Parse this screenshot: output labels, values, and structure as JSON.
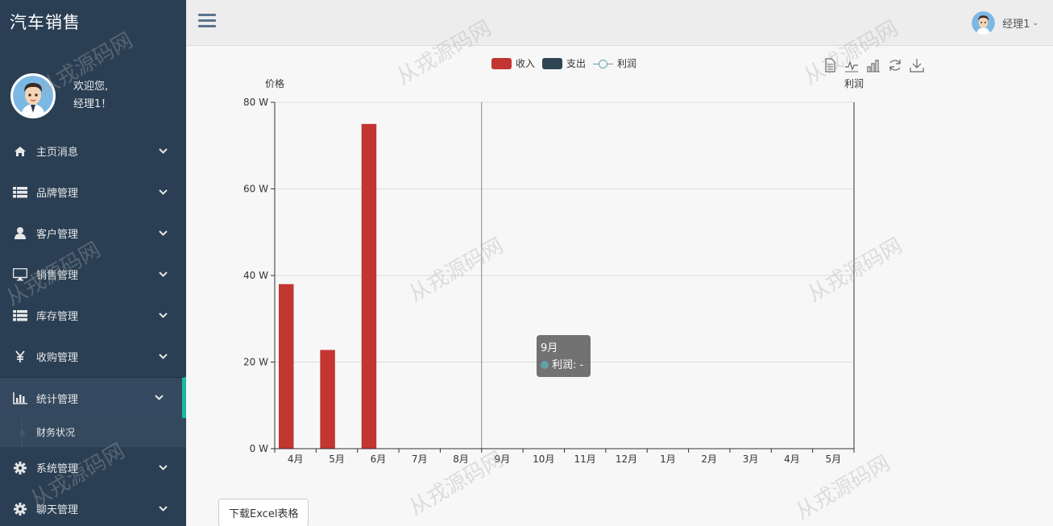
{
  "brand": {
    "title": "汽车销售"
  },
  "profile": {
    "greeting": "欢迎您,",
    "name": "经理1！"
  },
  "sidebar": {
    "items": [
      {
        "label": "主页消息",
        "icon": "home-icon"
      },
      {
        "label": "品牌管理",
        "icon": "list-icon"
      },
      {
        "label": "客户管理",
        "icon": "user-icon"
      },
      {
        "label": "销售管理",
        "icon": "desktop-icon"
      },
      {
        "label": "库存管理",
        "icon": "list-icon"
      },
      {
        "label": "收购管理",
        "icon": "yen-icon"
      },
      {
        "label": "统计管理",
        "icon": "bar-chart-icon"
      },
      {
        "label": "系统管理",
        "icon": "gear-icon"
      },
      {
        "label": "聊天管理",
        "icon": "gear-icon"
      }
    ],
    "active_index": 6,
    "submenu": {
      "label": "财务状况"
    },
    "chevron": "⌄"
  },
  "topbar": {
    "user_name": "经理1",
    "caret": "⌄"
  },
  "watermark": "从戎源码网",
  "chart_data": {
    "type": "bar",
    "title": "",
    "categories": [
      "4月",
      "5月",
      "6月",
      "7月",
      "8月",
      "9月",
      "10月",
      "11月",
      "12月",
      "1月",
      "2月",
      "3月",
      "4月",
      "5月"
    ],
    "series": [
      {
        "name": "收入",
        "type": "bar",
        "color": "#c23531",
        "values": [
          38,
          22.8,
          75,
          null,
          null,
          null,
          null,
          null,
          null,
          null,
          null,
          null,
          null,
          null
        ]
      },
      {
        "name": "支出",
        "type": "bar",
        "color": "#2f4554",
        "values": [
          null,
          null,
          null,
          null,
          null,
          null,
          null,
          null,
          null,
          null,
          null,
          null,
          null,
          null
        ]
      },
      {
        "name": "利润",
        "type": "line",
        "color": "#61a0a8",
        "values": [
          null,
          null,
          null,
          null,
          null,
          null,
          null,
          null,
          null,
          null,
          null,
          null,
          null,
          null
        ]
      }
    ],
    "ylabel": "价格",
    "y2label": "利润",
    "ylim": [
      0,
      80
    ],
    "yticks": [
      0,
      20,
      40,
      60,
      80
    ],
    "ytick_suffix": " W",
    "legend_position": "top-center",
    "tooltip": {
      "category": "9月",
      "series": "利润",
      "value": "-"
    },
    "hover_category": "9月"
  },
  "tooltip_text": {
    "title": "9月",
    "line": "利润: -"
  },
  "toolbox": [
    "data-view-icon",
    "line-chart-icon",
    "bar-chart-icon",
    "restore-icon",
    "download-icon"
  ],
  "excel_button": {
    "label": "下载Excel表格"
  }
}
